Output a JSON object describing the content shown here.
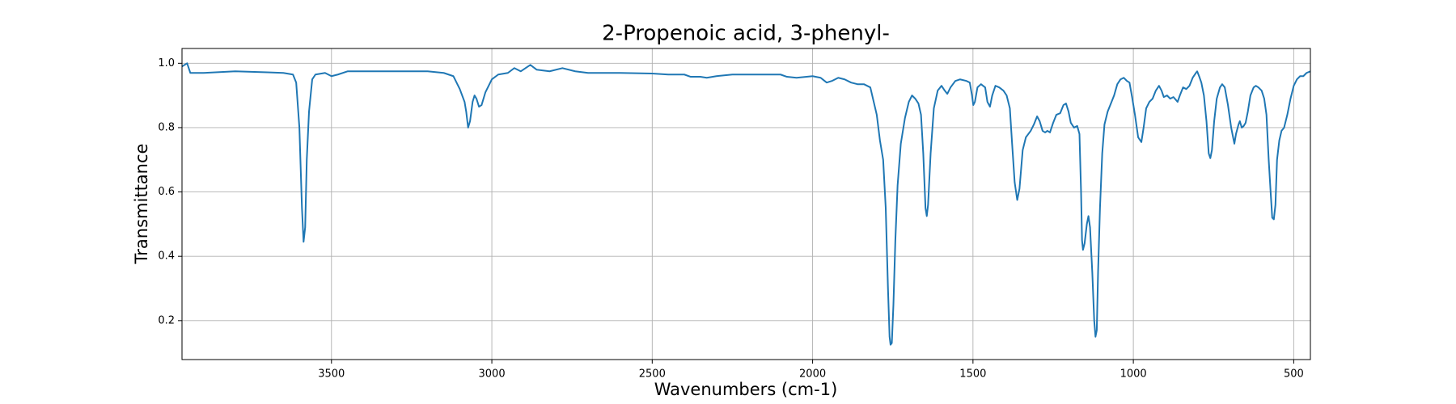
{
  "chart_data": {
    "type": "line",
    "title": "2-Propenoic acid, 3-phenyl-",
    "xlabel": "Wavenumbers (cm-1)",
    "ylabel": "Transmittance",
    "color": "#1f77b4",
    "grid": true,
    "xlim": [
      3966,
      448
    ],
    "ylim": [
      0.079,
      1.046
    ],
    "xticks": [
      3500,
      3000,
      2500,
      2000,
      1500,
      1000,
      500
    ],
    "yticks": [
      0.2,
      0.4,
      0.6,
      0.8,
      {
        "value": 1,
        "label": "1.0"
      }
    ],
    "x": [
      3966,
      3950,
      3940,
      3900,
      3800,
      3700,
      3650,
      3620,
      3610,
      3600,
      3592,
      3587,
      3582,
      3577,
      3570,
      3560,
      3550,
      3520,
      3500,
      3480,
      3450,
      3300,
      3200,
      3150,
      3120,
      3100,
      3085,
      3080,
      3074,
      3068,
      3060,
      3054,
      3048,
      3040,
      3032,
      3020,
      3000,
      2980,
      2950,
      2930,
      2910,
      2880,
      2860,
      2820,
      2780,
      2740,
      2700,
      2600,
      2500,
      2450,
      2400,
      2380,
      2350,
      2330,
      2300,
      2250,
      2200,
      2100,
      2080,
      2050,
      2000,
      1975,
      1956,
      1940,
      1920,
      1900,
      1880,
      1860,
      1840,
      1820,
      1800,
      1790,
      1780,
      1772,
      1765,
      1760,
      1757,
      1753,
      1748,
      1742,
      1735,
      1725,
      1712,
      1700,
      1690,
      1680,
      1670,
      1662,
      1655,
      1648,
      1644,
      1640,
      1632,
      1622,
      1610,
      1598,
      1588,
      1580,
      1570,
      1555,
      1540,
      1520,
      1510,
      1503,
      1499,
      1494,
      1486,
      1475,
      1462,
      1455,
      1447,
      1440,
      1430,
      1418,
      1405,
      1395,
      1385,
      1378,
      1370,
      1362,
      1355,
      1345,
      1335,
      1320,
      1310,
      1300,
      1292,
      1283,
      1275,
      1268,
      1260,
      1250,
      1240,
      1228,
      1218,
      1210,
      1202,
      1195,
      1185,
      1175,
      1168,
      1163,
      1160,
      1157,
      1152,
      1145,
      1140,
      1135,
      1128,
      1122,
      1118,
      1114,
      1110,
      1104,
      1097,
      1090,
      1080,
      1070,
      1060,
      1050,
      1040,
      1030,
      1020,
      1012,
      1004,
      995,
      985,
      975,
      968,
      960,
      950,
      940,
      930,
      920,
      912,
      905,
      895,
      885,
      875,
      862,
      855,
      845,
      835,
      825,
      815,
      805,
      801,
      795,
      788,
      780,
      772,
      765,
      760,
      755,
      748,
      740,
      730,
      723,
      715,
      705,
      695,
      688,
      685,
      680,
      672,
      668,
      662,
      656,
      650,
      643,
      635,
      625,
      618,
      610,
      600,
      592,
      585,
      578,
      572,
      567,
      562,
      557,
      552,
      545,
      538,
      530,
      520,
      510,
      500,
      490,
      480,
      470,
      460,
      448
    ],
    "values": [
      0.99,
      1.0,
      0.97,
      0.97,
      0.975,
      0.972,
      0.97,
      0.965,
      0.94,
      0.8,
      0.55,
      0.445,
      0.49,
      0.7,
      0.85,
      0.95,
      0.965,
      0.97,
      0.96,
      0.965,
      0.975,
      0.975,
      0.975,
      0.97,
      0.96,
      0.92,
      0.88,
      0.85,
      0.8,
      0.82,
      0.88,
      0.9,
      0.89,
      0.865,
      0.87,
      0.91,
      0.95,
      0.965,
      0.97,
      0.985,
      0.975,
      0.995,
      0.98,
      0.975,
      0.985,
      0.975,
      0.97,
      0.97,
      0.968,
      0.965,
      0.965,
      0.958,
      0.958,
      0.955,
      0.96,
      0.965,
      0.965,
      0.965,
      0.958,
      0.955,
      0.96,
      0.955,
      0.94,
      0.945,
      0.955,
      0.95,
      0.94,
      0.935,
      0.935,
      0.925,
      0.84,
      0.76,
      0.7,
      0.55,
      0.3,
      0.15,
      0.125,
      0.13,
      0.25,
      0.45,
      0.62,
      0.75,
      0.83,
      0.88,
      0.9,
      0.89,
      0.875,
      0.84,
      0.72,
      0.55,
      0.525,
      0.56,
      0.72,
      0.86,
      0.915,
      0.93,
      0.915,
      0.905,
      0.925,
      0.945,
      0.95,
      0.945,
      0.94,
      0.9,
      0.87,
      0.88,
      0.925,
      0.935,
      0.925,
      0.88,
      0.865,
      0.9,
      0.93,
      0.925,
      0.915,
      0.9,
      0.86,
      0.75,
      0.63,
      0.575,
      0.61,
      0.73,
      0.77,
      0.79,
      0.81,
      0.835,
      0.82,
      0.79,
      0.785,
      0.79,
      0.785,
      0.815,
      0.84,
      0.845,
      0.87,
      0.875,
      0.85,
      0.815,
      0.8,
      0.805,
      0.78,
      0.6,
      0.45,
      0.42,
      0.44,
      0.5,
      0.525,
      0.49,
      0.35,
      0.2,
      0.15,
      0.17,
      0.35,
      0.55,
      0.72,
      0.81,
      0.85,
      0.875,
      0.9,
      0.935,
      0.95,
      0.955,
      0.945,
      0.94,
      0.895,
      0.84,
      0.77,
      0.755,
      0.8,
      0.86,
      0.88,
      0.89,
      0.915,
      0.93,
      0.915,
      0.895,
      0.9,
      0.89,
      0.895,
      0.88,
      0.9,
      0.925,
      0.92,
      0.93,
      0.955,
      0.97,
      0.975,
      0.96,
      0.94,
      0.9,
      0.82,
      0.72,
      0.705,
      0.73,
      0.82,
      0.89,
      0.925,
      0.935,
      0.925,
      0.87,
      0.8,
      0.765,
      0.75,
      0.78,
      0.81,
      0.82,
      0.8,
      0.805,
      0.815,
      0.85,
      0.9,
      0.925,
      0.93,
      0.925,
      0.915,
      0.89,
      0.84,
      0.7,
      0.6,
      0.52,
      0.515,
      0.56,
      0.7,
      0.76,
      0.79,
      0.8,
      0.84,
      0.89,
      0.93,
      0.95,
      0.96,
      0.96,
      0.97,
      0.975
    ]
  }
}
